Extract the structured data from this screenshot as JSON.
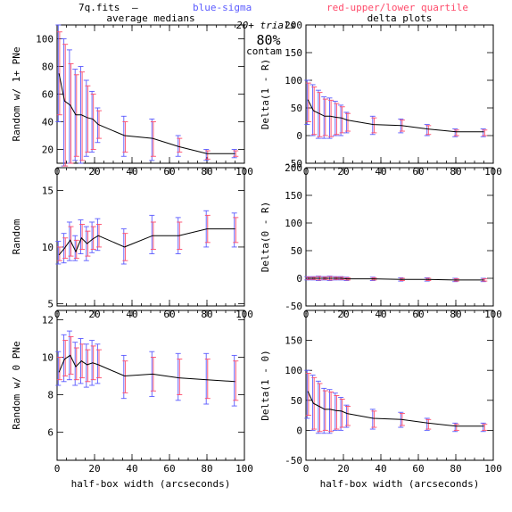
{
  "header": {
    "file": "7q.fits",
    "dash": "—",
    "legend_sigma": "blue-sigma",
    "legend_quartile": "red-upper/lower quartile",
    "trials": "20+ trials",
    "contam_pct": "80%",
    "contam_label": "contam",
    "sigma_color": "#5a5aff",
    "quartile_color": "#ff4a6a"
  },
  "chart_data": [
    {
      "type": "line",
      "id": "p1",
      "title": "average medians",
      "xlabel": "",
      "ylabel": "Random w/ 1+ PNe",
      "xlim": [
        0,
        100
      ],
      "ylim": [
        10,
        110
      ],
      "xticks": [
        0,
        20,
        40,
        60,
        80,
        100
      ],
      "yticks": [
        20,
        40,
        60,
        80,
        100
      ],
      "x": [
        1,
        4,
        7,
        10,
        13,
        16,
        19,
        22,
        36,
        51,
        65,
        80,
        95
      ],
      "median": [
        75,
        55,
        52,
        45,
        45,
        43,
        42,
        38,
        30,
        28,
        22,
        17,
        17
      ],
      "sigma": [
        [
          40,
          110
        ],
        [
          8,
          100
        ],
        [
          10,
          92
        ],
        [
          12,
          78
        ],
        [
          10,
          80
        ],
        [
          15,
          70
        ],
        [
          18,
          62
        ],
        [
          25,
          50
        ],
        [
          15,
          44
        ],
        [
          12,
          42
        ],
        [
          15,
          30
        ],
        [
          12,
          20
        ],
        [
          14,
          20
        ]
      ],
      "quartile": [
        [
          45,
          105
        ],
        [
          8,
          96
        ],
        [
          10,
          82
        ],
        [
          15,
          74
        ],
        [
          12,
          76
        ],
        [
          18,
          66
        ],
        [
          20,
          60
        ],
        [
          28,
          48
        ],
        [
          18,
          40
        ],
        [
          15,
          40
        ],
        [
          18,
          28
        ],
        [
          13,
          19
        ],
        [
          15,
          19
        ]
      ]
    },
    {
      "type": "line",
      "id": "p2",
      "title": "delta plots",
      "xlabel": "",
      "ylabel": "Delta(1 - R)",
      "xlim": [
        0,
        100
      ],
      "ylim": [
        -50,
        200
      ],
      "xticks": [
        0,
        20,
        40,
        60,
        80,
        100
      ],
      "yticks": [
        -50,
        0,
        50,
        100,
        150,
        200
      ],
      "ytick_labels": [
        "-50",
        "0",
        "50",
        "100",
        "150",
        "200"
      ],
      "x": [
        1,
        4,
        7,
        10,
        13,
        16,
        19,
        22,
        36,
        51,
        65,
        80,
        95
      ],
      "median": [
        65,
        45,
        40,
        35,
        35,
        33,
        32,
        28,
        20,
        18,
        12,
        7,
        7
      ],
      "sigma": [
        [
          20,
          100
        ],
        [
          0,
          92
        ],
        [
          -5,
          82
        ],
        [
          -5,
          70
        ],
        [
          -5,
          68
        ],
        [
          0,
          62
        ],
        [
          0,
          55
        ],
        [
          5,
          42
        ],
        [
          2,
          35
        ],
        [
          5,
          30
        ],
        [
          0,
          20
        ],
        [
          -2,
          12
        ],
        [
          -2,
          12
        ]
      ],
      "quartile": [
        [
          25,
          95
        ],
        [
          2,
          88
        ],
        [
          -2,
          78
        ],
        [
          0,
          66
        ],
        [
          -2,
          64
        ],
        [
          2,
          58
        ],
        [
          5,
          52
        ],
        [
          8,
          40
        ],
        [
          5,
          32
        ],
        [
          8,
          28
        ],
        [
          2,
          18
        ],
        [
          0,
          10
        ],
        [
          0,
          10
        ]
      ]
    },
    {
      "type": "line",
      "id": "p3",
      "title": "",
      "xlabel": "",
      "ylabel": "Random",
      "xlim": [
        0,
        100
      ],
      "ylim": [
        4.8,
        17
      ],
      "xticks": [
        0,
        20,
        40,
        60,
        80,
        100
      ],
      "yticks": [
        5,
        10,
        15
      ],
      "x": [
        1,
        4,
        7,
        10,
        13,
        16,
        19,
        22,
        36,
        51,
        65,
        80,
        95
      ],
      "median": [
        9.3,
        9.9,
        10.6,
        9.6,
        10.8,
        10.3,
        10.7,
        11.0,
        10.0,
        11.0,
        11.0,
        11.6,
        11.6
      ],
      "sigma": [
        [
          8.5,
          10.5
        ],
        [
          8.6,
          11.2
        ],
        [
          8.8,
          12.2
        ],
        [
          8.8,
          11.0
        ],
        [
          9.4,
          12.4
        ],
        [
          8.8,
          11.8
        ],
        [
          9.5,
          12.2
        ],
        [
          9.7,
          12.5
        ],
        [
          8.5,
          11.6
        ],
        [
          9.4,
          12.8
        ],
        [
          9.4,
          12.6
        ],
        [
          10.0,
          13.2
        ],
        [
          10.0,
          13.0
        ]
      ],
      "quartile": [
        [
          8.8,
          10.0
        ],
        [
          9.0,
          10.8
        ],
        [
          9.2,
          11.8
        ],
        [
          9.0,
          10.6
        ],
        [
          9.8,
          12.0
        ],
        [
          9.2,
          11.4
        ],
        [
          9.8,
          11.8
        ],
        [
          10.0,
          12.0
        ],
        [
          8.8,
          11.2
        ],
        [
          9.8,
          12.2
        ],
        [
          9.8,
          12.2
        ],
        [
          10.4,
          12.8
        ],
        [
          10.4,
          12.6
        ]
      ]
    },
    {
      "type": "line",
      "id": "p4",
      "title": "",
      "xlabel": "",
      "ylabel": "Delta(0 - R)",
      "xlim": [
        0,
        100
      ],
      "ylim": [
        -50,
        200
      ],
      "xticks": [
        0,
        20,
        40,
        60,
        80,
        100
      ],
      "yticks": [
        -50,
        0,
        50,
        100,
        150,
        200
      ],
      "ytick_labels": [
        "-50",
        "0",
        "50",
        "100",
        "150",
        "200"
      ],
      "x": [
        1,
        4,
        7,
        10,
        13,
        16,
        19,
        22,
        36,
        51,
        65,
        80,
        95
      ],
      "median": [
        0,
        0,
        0,
        0,
        0,
        0,
        0,
        -1,
        -1,
        -2,
        -2,
        -3,
        -3
      ],
      "sigma": [
        [
          -3,
          3
        ],
        [
          -3,
          3
        ],
        [
          -4,
          4
        ],
        [
          -3,
          3
        ],
        [
          -4,
          4
        ],
        [
          -3,
          3
        ],
        [
          -3,
          3
        ],
        [
          -4,
          2
        ],
        [
          -4,
          2
        ],
        [
          -5,
          1
        ],
        [
          -5,
          1
        ],
        [
          -6,
          0
        ],
        [
          -6,
          0
        ]
      ],
      "quartile": [
        [
          -2,
          2
        ],
        [
          -2,
          2
        ],
        [
          -3,
          3
        ],
        [
          -2,
          2
        ],
        [
          -3,
          3
        ],
        [
          -2,
          2
        ],
        [
          -2,
          2
        ],
        [
          -3,
          1
        ],
        [
          -3,
          1
        ],
        [
          -4,
          0
        ],
        [
          -4,
          0
        ],
        [
          -5,
          -1
        ],
        [
          -5,
          -1
        ]
      ]
    },
    {
      "type": "line",
      "id": "p5",
      "title": "",
      "xlabel": "half-box width (arcseconds)",
      "ylabel": "Random w/ 0 PNe",
      "xlim": [
        0,
        100
      ],
      "ylim": [
        4.5,
        12.5
      ],
      "xticks": [
        0,
        20,
        40,
        60,
        80,
        100
      ],
      "yticks": [
        6,
        8,
        10,
        12
      ],
      "x": [
        1,
        4,
        7,
        10,
        13,
        16,
        19,
        22,
        36,
        51,
        65,
        80,
        95
      ],
      "median": [
        9.2,
        9.9,
        10.1,
        9.5,
        9.8,
        9.6,
        9.7,
        9.6,
        9.0,
        9.1,
        8.9,
        8.8,
        8.7
      ],
      "sigma": [
        [
          8.5,
          10.3
        ],
        [
          8.7,
          11.2
        ],
        [
          8.8,
          11.4
        ],
        [
          8.5,
          10.8
        ],
        [
          8.6,
          11.0
        ],
        [
          8.4,
          10.7
        ],
        [
          8.5,
          10.9
        ],
        [
          8.6,
          10.7
        ],
        [
          7.8,
          10.1
        ],
        [
          7.9,
          10.3
        ],
        [
          7.7,
          10.2
        ],
        [
          7.5,
          10.2
        ],
        [
          7.4,
          10.1
        ]
      ],
      "quartile": [
        [
          8.8,
          10.0
        ],
        [
          9.0,
          10.9
        ],
        [
          9.1,
          11.1
        ],
        [
          8.8,
          10.5
        ],
        [
          8.9,
          10.7
        ],
        [
          8.7,
          10.4
        ],
        [
          8.8,
          10.6
        ],
        [
          8.9,
          10.4
        ],
        [
          8.1,
          9.8
        ],
        [
          8.2,
          10.0
        ],
        [
          8.0,
          9.9
        ],
        [
          7.8,
          9.9
        ],
        [
          7.7,
          9.8
        ]
      ]
    },
    {
      "type": "line",
      "id": "p6",
      "title": "",
      "xlabel": "half-box width (arcseconds)",
      "ylabel": "Delta(1 - 0)",
      "xlim": [
        0,
        100
      ],
      "ylim": [
        -50,
        200
      ],
      "xticks": [
        0,
        20,
        40,
        60,
        80,
        100
      ],
      "yticks": [
        -50,
        0,
        50,
        100,
        150,
        200
      ],
      "ytick_labels": [
        "-50",
        "0",
        "50",
        "100",
        "150",
        ""
      ],
      "x": [
        1,
        4,
        7,
        10,
        13,
        16,
        19,
        22,
        36,
        51,
        65,
        80,
        95
      ],
      "median": [
        65,
        45,
        40,
        35,
        35,
        33,
        32,
        28,
        20,
        18,
        12,
        7,
        7
      ],
      "sigma": [
        [
          20,
          100
        ],
        [
          0,
          92
        ],
        [
          -5,
          82
        ],
        [
          -5,
          70
        ],
        [
          -5,
          68
        ],
        [
          0,
          62
        ],
        [
          0,
          55
        ],
        [
          5,
          42
        ],
        [
          2,
          35
        ],
        [
          5,
          30
        ],
        [
          0,
          20
        ],
        [
          -2,
          12
        ],
        [
          -2,
          12
        ]
      ],
      "quartile": [
        [
          25,
          95
        ],
        [
          2,
          88
        ],
        [
          -2,
          78
        ],
        [
          0,
          66
        ],
        [
          -2,
          64
        ],
        [
          2,
          58
        ],
        [
          5,
          52
        ],
        [
          8,
          40
        ],
        [
          5,
          32
        ],
        [
          8,
          28
        ],
        [
          2,
          18
        ],
        [
          0,
          10
        ],
        [
          0,
          10
        ]
      ]
    }
  ]
}
